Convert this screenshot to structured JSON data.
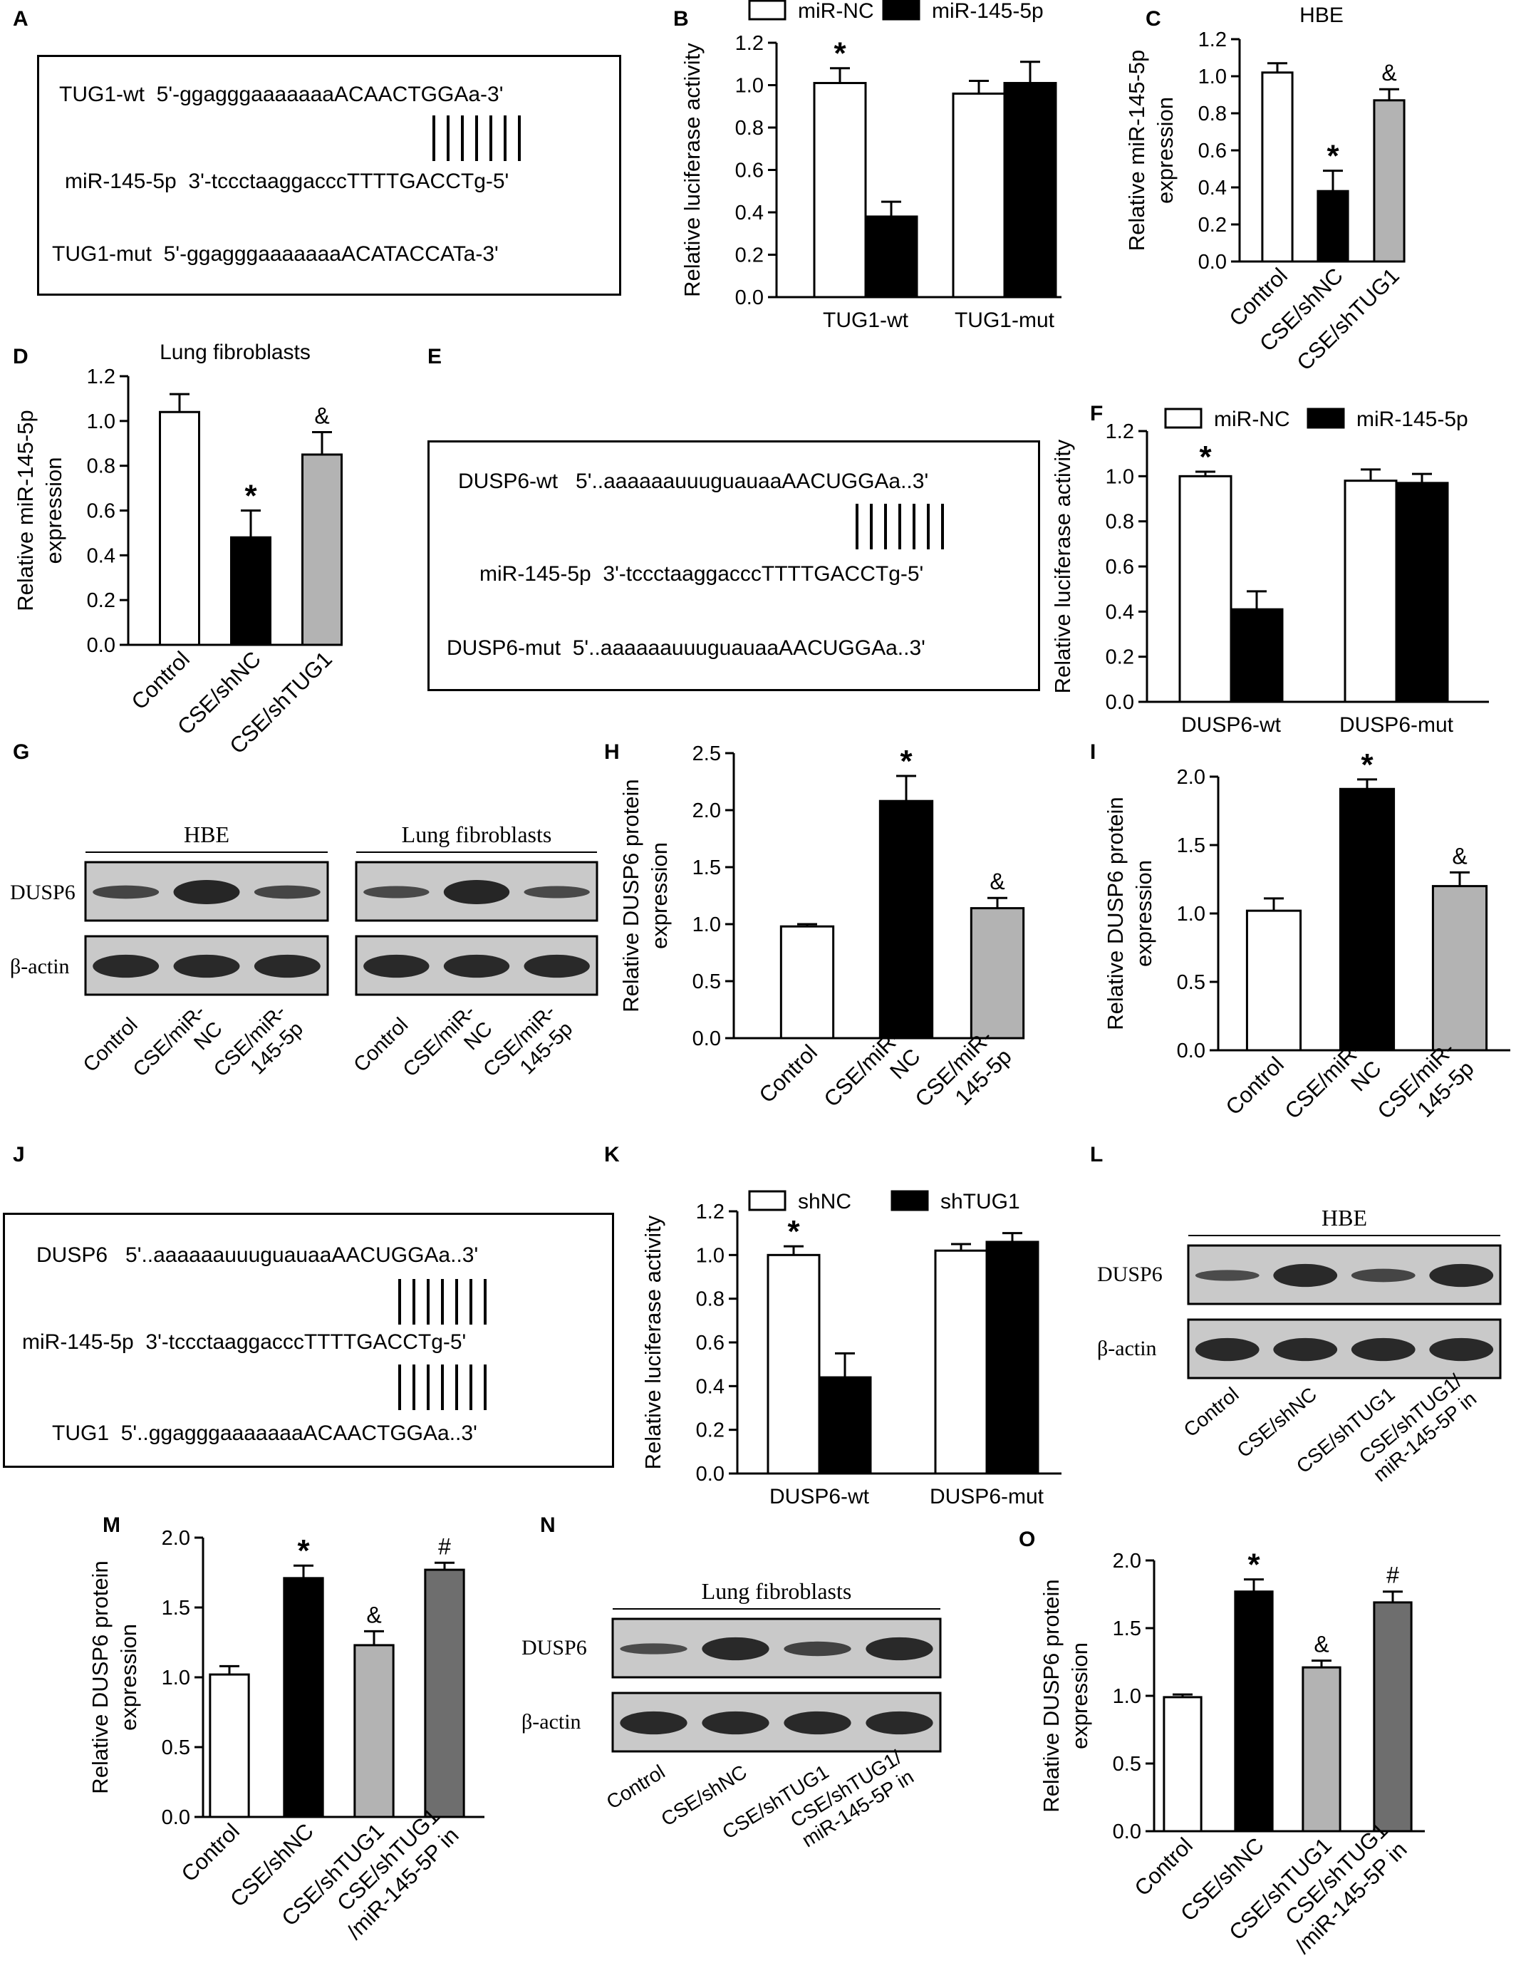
{
  "panels": {
    "A": {
      "letter": "A",
      "seq": [
        "TUG1-wt  5'-ggagggaaaaaaaACAACTGGAa-3'",
        "miR-145-5p  3'-tccctaaggacccTTTTGACCTg-5'",
        "TUG1-mut  5'-ggagggaaaaaaaACATACCATa-3'"
      ]
    },
    "B": {
      "letter": "B"
    },
    "C": {
      "letter": "C"
    },
    "D": {
      "letter": "D"
    },
    "E": {
      "letter": "E",
      "seq": [
        "DUSP6-wt   5'..aaaaaauuuguauaaAACUGGAa..3'",
        "miR-145-5p  3'-tccctaaggacccTTTTGACCTg-5'",
        "DUSP6-mut  5'..aaaaaauuuguauaaAACUGGAa..3'"
      ]
    },
    "F": {
      "letter": "F"
    },
    "G": {
      "letter": "G",
      "groups": [
        "HBE",
        "Lung fibroblasts"
      ],
      "rows": [
        "DUSP6",
        "β-actin"
      ],
      "lanes": [
        [
          "Control"
        ],
        [
          "CSE/miR-",
          "NC"
        ],
        [
          "CSE/miR-",
          "145-5p"
        ]
      ]
    },
    "H": {
      "letter": "H"
    },
    "I": {
      "letter": "I"
    },
    "J": {
      "letter": "J",
      "seq": [
        "DUSP6   5'..aaaaaauuuguauaaAACUGGAa..3'",
        "miR-145-5p  3'-tccctaaggacccTTTTGACCTg-5'",
        "TUG1  5'..ggagggaaaaaaaACAACTGGAa..3'"
      ]
    },
    "K": {
      "letter": "K"
    },
    "L": {
      "letter": "L",
      "group": "HBE",
      "rows": [
        "DUSP6",
        "β-actin"
      ],
      "lanes": [
        [
          "Control"
        ],
        [
          "CSE/shNC"
        ],
        [
          "CSE/shTUG1"
        ],
        [
          "CSE/shTUG1/",
          "miR-145-5P in"
        ]
      ]
    },
    "M": {
      "letter": "M"
    },
    "N": {
      "letter": "N",
      "group": "Lung fibroblasts",
      "rows": [
        "DUSP6",
        "β-actin"
      ],
      "lanes": [
        [
          "Control"
        ],
        [
          "CSE/shNC"
        ],
        [
          "CSE/shTUG1"
        ],
        [
          "CSE/shTUG1/",
          "miR-145-5P in"
        ]
      ]
    },
    "O": {
      "letter": "O"
    }
  },
  "colors": {
    "white": "#ffffff",
    "black": "#000000",
    "lightgray": "#b3b3b3",
    "darkgray": "#6e6e6e"
  },
  "chart_data": [
    {
      "id": "B",
      "type": "bar",
      "title": "",
      "ylabel": "Relative luciferase activity",
      "ylim": [
        0,
        1.2
      ],
      "yticks": [
        "0.0",
        "0.2",
        "0.4",
        "0.6",
        "0.8",
        "1.0",
        "1.2"
      ],
      "categories": [
        [
          "TUG1-wt"
        ],
        [
          "TUG1-mut"
        ]
      ],
      "series": [
        {
          "name": "miR-NC",
          "color": "#ffffff",
          "values": [
            1.01,
            0.96
          ],
          "err": [
            0.07,
            0.06
          ]
        },
        {
          "name": "miR-145-5p",
          "color": "#000000",
          "values": [
            0.38,
            1.01
          ],
          "err": [
            0.07,
            0.1
          ]
        }
      ],
      "annotations": [
        [
          "*",
          ""
        ],
        [
          "",
          ""
        ]
      ],
      "legend": "top"
    },
    {
      "id": "C",
      "type": "bar",
      "title": "HBE",
      "ylabel": "Relative miR-145-5p expression",
      "ylim": [
        0,
        1.2
      ],
      "yticks": [
        "0.0",
        "0.2",
        "0.4",
        "0.6",
        "0.8",
        "1.0",
        "1.2"
      ],
      "categories": [
        [
          "Control"
        ],
        [
          "CSE/shNC"
        ],
        [
          "CSE/shTUG1"
        ]
      ],
      "series": [
        {
          "colors": [
            "#ffffff",
            "#000000",
            "#b3b3b3"
          ],
          "values": [
            1.02,
            0.38,
            0.87
          ],
          "err": [
            0.05,
            0.11,
            0.06
          ]
        }
      ],
      "annotations": [
        [
          "",
          "*",
          "&"
        ]
      ]
    },
    {
      "id": "D",
      "type": "bar",
      "title": "Lung fibroblasts",
      "ylabel": "Relative miR-145-5p expression",
      "ylim": [
        0,
        1.2
      ],
      "yticks": [
        "0.0",
        "0.2",
        "0.4",
        "0.6",
        "0.8",
        "1.0",
        "1.2"
      ],
      "categories": [
        [
          "Control"
        ],
        [
          "CSE/shNC"
        ],
        [
          "CSE/shTUG1"
        ]
      ],
      "series": [
        {
          "colors": [
            "#ffffff",
            "#000000",
            "#b3b3b3"
          ],
          "values": [
            1.04,
            0.48,
            0.85
          ],
          "err": [
            0.08,
            0.12,
            0.1
          ]
        }
      ],
      "annotations": [
        [
          "",
          "*",
          "&"
        ]
      ]
    },
    {
      "id": "F",
      "type": "bar",
      "title": "",
      "ylabel": "Relative luciferase activity",
      "ylim": [
        0,
        1.2
      ],
      "yticks": [
        "0.0",
        "0.2",
        "0.4",
        "0.6",
        "0.8",
        "1.0",
        "1.2"
      ],
      "categories": [
        [
          "DUSP6-wt"
        ],
        [
          "DUSP6-mut"
        ]
      ],
      "series": [
        {
          "name": "miR-NC",
          "color": "#ffffff",
          "values": [
            1.0,
            0.98
          ],
          "err": [
            0.02,
            0.05
          ]
        },
        {
          "name": "miR-145-5p",
          "color": "#000000",
          "values": [
            0.41,
            0.97
          ],
          "err": [
            0.08,
            0.04
          ]
        }
      ],
      "annotations": [
        [
          "*",
          ""
        ],
        [
          "",
          ""
        ]
      ],
      "legend": "top"
    },
    {
      "id": "H",
      "type": "bar",
      "title": "",
      "ylabel": "Relative DUSP6 protein expression",
      "ylim": [
        0,
        2.5
      ],
      "yticks": [
        "0.0",
        "0.5",
        "1.0",
        "1.5",
        "2.0",
        "2.5"
      ],
      "categories": [
        [
          "Control"
        ],
        [
          "CSE/miR-",
          "NC"
        ],
        [
          "CSE/miR-",
          "145-5p"
        ]
      ],
      "series": [
        {
          "colors": [
            "#ffffff",
            "#000000",
            "#b3b3b3"
          ],
          "values": [
            0.98,
            2.08,
            1.14
          ],
          "err": [
            0.02,
            0.22,
            0.09
          ]
        }
      ],
      "annotations": [
        [
          "",
          "*",
          "&"
        ]
      ]
    },
    {
      "id": "I",
      "type": "bar",
      "title": "",
      "ylabel": "Relative DUSP6 protein expression",
      "ylim": [
        0,
        2.0
      ],
      "yticks": [
        "0.0",
        "0.5",
        "1.0",
        "1.5",
        "2.0"
      ],
      "categories": [
        [
          "Control"
        ],
        [
          "CSE/miR-",
          "NC"
        ],
        [
          "CSE/miR-",
          "145-5p"
        ]
      ],
      "series": [
        {
          "colors": [
            "#ffffff",
            "#000000",
            "#b3b3b3"
          ],
          "values": [
            1.02,
            1.91,
            1.2
          ],
          "err": [
            0.09,
            0.07,
            0.1
          ]
        }
      ],
      "annotations": [
        [
          "",
          "*",
          "&"
        ]
      ]
    },
    {
      "id": "K",
      "type": "bar",
      "title": "",
      "ylabel": "Relative luciferase activity",
      "ylim": [
        0,
        1.2
      ],
      "yticks": [
        "0.0",
        "0.2",
        "0.4",
        "0.6",
        "0.8",
        "1.0",
        "1.2"
      ],
      "categories": [
        [
          "DUSP6-wt"
        ],
        [
          "DUSP6-mut"
        ]
      ],
      "series": [
        {
          "name": "shNC",
          "color": "#ffffff",
          "values": [
            1.0,
            1.02
          ],
          "err": [
            0.04,
            0.03
          ]
        },
        {
          "name": "shTUG1",
          "color": "#000000",
          "values": [
            0.44,
            1.06
          ],
          "err": [
            0.11,
            0.04
          ]
        }
      ],
      "annotations": [
        [
          "*",
          ""
        ],
        [
          "",
          ""
        ]
      ],
      "legend": "top"
    },
    {
      "id": "M",
      "type": "bar",
      "title": "",
      "ylabel": "Relative DUSP6 protein expression",
      "ylim": [
        0,
        2.0
      ],
      "yticks": [
        "0.0",
        "0.5",
        "1.0",
        "1.5",
        "2.0"
      ],
      "categories": [
        [
          "Control"
        ],
        [
          "CSE/shNC"
        ],
        [
          "CSE/shTUG1"
        ],
        [
          "CSE/shTUG1",
          "/miR-145-5P in"
        ]
      ],
      "series": [
        {
          "colors": [
            "#ffffff",
            "#000000",
            "#b3b3b3",
            "#6e6e6e"
          ],
          "values": [
            1.02,
            1.71,
            1.23,
            1.77
          ],
          "err": [
            0.06,
            0.09,
            0.1,
            0.05
          ]
        }
      ],
      "annotations": [
        [
          "",
          "*",
          "&",
          "#"
        ]
      ]
    },
    {
      "id": "O",
      "type": "bar",
      "title": "",
      "ylabel": "Relative DUSP6 protein expression",
      "ylim": [
        0,
        2.0
      ],
      "yticks": [
        "0.0",
        "0.5",
        "1.0",
        "1.5",
        "2.0"
      ],
      "categories": [
        [
          "Control"
        ],
        [
          "CSE/shNC"
        ],
        [
          "CSE/shTUG1"
        ],
        [
          "CSE/shTUG1",
          "/miR-145-5P in"
        ]
      ],
      "series": [
        {
          "colors": [
            "#ffffff",
            "#000000",
            "#b3b3b3",
            "#6e6e6e"
          ],
          "values": [
            0.99,
            1.77,
            1.21,
            1.69
          ],
          "err": [
            0.02,
            0.09,
            0.05,
            0.08
          ]
        }
      ],
      "annotations": [
        [
          "",
          "*",
          "&",
          "#"
        ]
      ]
    }
  ]
}
